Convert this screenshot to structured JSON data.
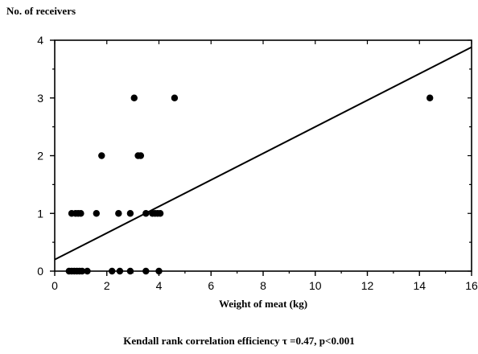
{
  "chart_data": {
    "type": "scatter",
    "title": "",
    "xlabel": "Weight of meat (kg)",
    "ylabel": "No. of receivers",
    "xlim": [
      0,
      16
    ],
    "ylim": [
      0,
      4
    ],
    "xticks": [
      0,
      2,
      4,
      6,
      8,
      10,
      12,
      14,
      16
    ],
    "yticks": [
      0,
      1,
      2,
      3,
      4
    ],
    "grid": false,
    "caption": "Kendall rank correlation efficiency  τ =0.47, p<0.001",
    "series": [
      {
        "marker": "filled-circle",
        "points": [
          [
            0.55,
            0
          ],
          [
            0.65,
            0
          ],
          [
            0.75,
            0
          ],
          [
            0.85,
            0
          ],
          [
            0.95,
            0
          ],
          [
            1.05,
            0
          ],
          [
            1.25,
            0
          ],
          [
            2.2,
            0
          ],
          [
            2.5,
            0
          ],
          [
            2.9,
            0
          ],
          [
            3.5,
            0
          ],
          [
            4.0,
            0
          ],
          [
            0.65,
            1
          ],
          [
            0.8,
            1
          ],
          [
            0.9,
            1
          ],
          [
            1.0,
            1
          ],
          [
            1.6,
            1
          ],
          [
            2.45,
            1
          ],
          [
            2.9,
            1
          ],
          [
            3.5,
            1
          ],
          [
            3.75,
            1
          ],
          [
            3.85,
            1
          ],
          [
            3.95,
            1
          ],
          [
            4.05,
            1
          ],
          [
            1.8,
            2
          ],
          [
            3.2,
            2
          ],
          [
            3.3,
            2
          ],
          [
            3.05,
            3
          ],
          [
            4.6,
            3
          ],
          [
            14.4,
            3
          ]
        ]
      }
    ],
    "trendline": {
      "x": [
        0,
        16
      ],
      "y": [
        0.2,
        3.88
      ]
    }
  }
}
